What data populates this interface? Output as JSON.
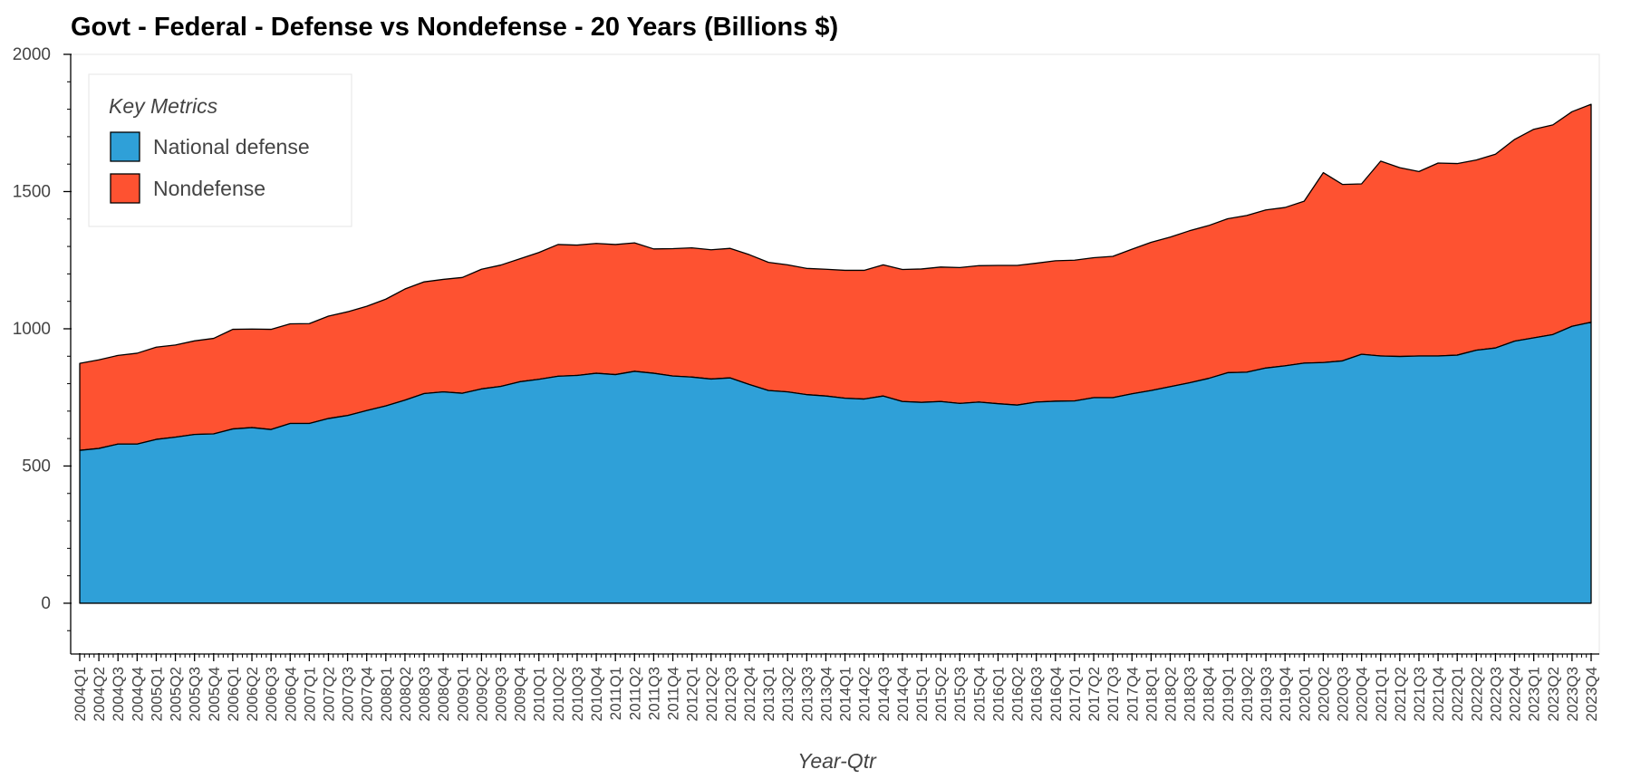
{
  "chart_data": {
    "type": "area",
    "stacked": true,
    "title": "Govt - Federal - Defense vs Nondefense - 20 Years (Billions $)",
    "xlabel": "Year-Qtr",
    "ylabel": "",
    "ylim": [
      -185,
      2000
    ],
    "yticks": [
      0,
      500,
      1000,
      1500,
      2000
    ],
    "grid": false,
    "legend": {
      "title": "Key Metrics",
      "placement": "top-left"
    },
    "categories": [
      "2004Q1",
      "2004Q2",
      "2004Q3",
      "2004Q4",
      "2005Q1",
      "2005Q2",
      "2005Q3",
      "2005Q4",
      "2006Q1",
      "2006Q2",
      "2006Q3",
      "2006Q4",
      "2007Q1",
      "2007Q2",
      "2007Q3",
      "2007Q4",
      "2008Q1",
      "2008Q2",
      "2008Q3",
      "2008Q4",
      "2009Q1",
      "2009Q2",
      "2009Q3",
      "2009Q4",
      "2010Q1",
      "2010Q2",
      "2010Q3",
      "2010Q4",
      "2011Q1",
      "2011Q2",
      "2011Q3",
      "2011Q4",
      "2012Q1",
      "2012Q2",
      "2012Q3",
      "2012Q4",
      "2013Q1",
      "2013Q2",
      "2013Q3",
      "2013Q4",
      "2014Q1",
      "2014Q2",
      "2014Q3",
      "2014Q4",
      "2015Q1",
      "2015Q2",
      "2015Q3",
      "2015Q4",
      "2016Q1",
      "2016Q2",
      "2016Q3",
      "2016Q4",
      "2017Q1",
      "2017Q2",
      "2017Q3",
      "2017Q4",
      "2018Q1",
      "2018Q2",
      "2018Q3",
      "2018Q4",
      "2019Q1",
      "2019Q2",
      "2019Q3",
      "2019Q4",
      "2020Q1",
      "2020Q2",
      "2020Q3",
      "2020Q4",
      "2021Q1",
      "2021Q2",
      "2021Q3",
      "2021Q4",
      "2022Q1",
      "2022Q2",
      "2022Q3",
      "2022Q4",
      "2023Q1",
      "2023Q2",
      "2023Q3",
      "2023Q4"
    ],
    "series": [
      {
        "name": "National defense",
        "color": "#2fa0d8",
        "values": [
          557,
          564,
          580,
          580,
          597,
          605,
          615,
          617,
          635,
          640,
          633,
          655,
          655,
          673,
          684,
          702,
          719,
          740,
          764,
          770,
          765,
          781,
          790,
          807,
          816,
          827,
          830,
          838,
          833,
          845,
          838,
          828,
          824,
          817,
          821,
          797,
          775,
          770,
          760,
          755,
          747,
          744,
          755,
          735,
          732,
          735,
          728,
          733,
          727,
          722,
          733,
          736,
          737,
          749,
          749,
          763,
          775,
          789,
          803,
          819,
          840,
          842,
          857,
          865,
          875,
          877,
          883,
          907,
          901,
          899,
          901,
          901,
          904,
          922,
          930,
          955,
          967,
          979,
          1009,
          1024
        ]
      },
      {
        "name": "Nondefense",
        "color": "#fe5231",
        "values": [
          317,
          323,
          323,
          331,
          336,
          336,
          341,
          348,
          363,
          359,
          365,
          363,
          364,
          373,
          378,
          380,
          389,
          405,
          407,
          410,
          422,
          436,
          442,
          448,
          462,
          480,
          475,
          473,
          474,
          468,
          453,
          464,
          471,
          471,
          472,
          473,
          467,
          463,
          460,
          462,
          466,
          469,
          478,
          481,
          486,
          490,
          495,
          497,
          504,
          509,
          506,
          512,
          513,
          510,
          515,
          527,
          540,
          545,
          554,
          557,
          561,
          571,
          576,
          577,
          590,
          692,
          643,
          621,
          710,
          688,
          672,
          703,
          698,
          693,
          706,
          735,
          760,
          764,
          782,
          794
        ]
      }
    ]
  }
}
